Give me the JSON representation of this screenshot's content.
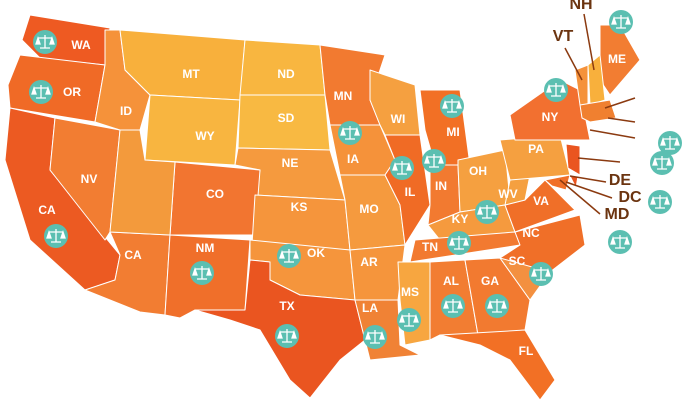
{
  "states": [
    "WA",
    "OR",
    "CA",
    "NV",
    "ID",
    "MT",
    "WY",
    "ND",
    "SD",
    "NE",
    "CO",
    "KS",
    "CA",
    "NM",
    "OK",
    "TX",
    "MN",
    "IA",
    "MO",
    "AR",
    "LA",
    "WI",
    "IL",
    "MI",
    "IN",
    "OH",
    "KY",
    "TN",
    "MS",
    "AL",
    "GA",
    "FL",
    "SC",
    "NC",
    "VA",
    "WV",
    "PA",
    "NY",
    "ME",
    "VT",
    "NH",
    "DE",
    "DC",
    "MD"
  ]
}
